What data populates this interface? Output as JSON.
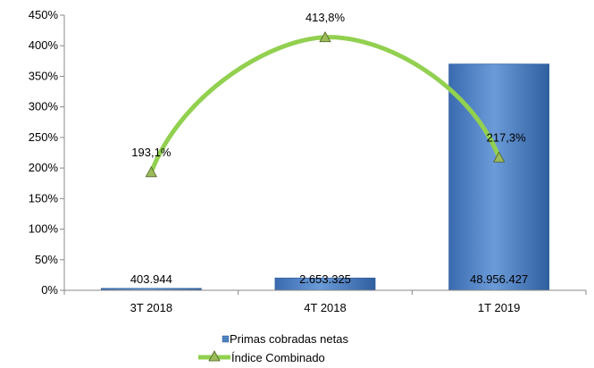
{
  "chart_data": {
    "type": "bar+line",
    "categories": [
      "3T 2018",
      "4T 2018",
      "1T 2019"
    ],
    "y_ticks": [
      "0%",
      "50%",
      "100%",
      "150%",
      "200%",
      "250%",
      "300%",
      "350%",
      "400%",
      "450%"
    ],
    "ylim": [
      0,
      450
    ],
    "bar_series": {
      "name": "Primas cobradas netas",
      "values": [
        403944,
        2653325,
        48956427
      ],
      "labels": [
        "403.944",
        "2.653.325",
        "48.956.427"
      ],
      "color": "#4F81BD"
    },
    "line_series": {
      "name": "Índice Combinado",
      "values": [
        193.1,
        413.8,
        217.3
      ],
      "labels": [
        "193,1%",
        "413,8%",
        "217,3%"
      ],
      "color": "#92D050",
      "marker": "triangle"
    },
    "legend_position": "bottom",
    "grid": false
  }
}
